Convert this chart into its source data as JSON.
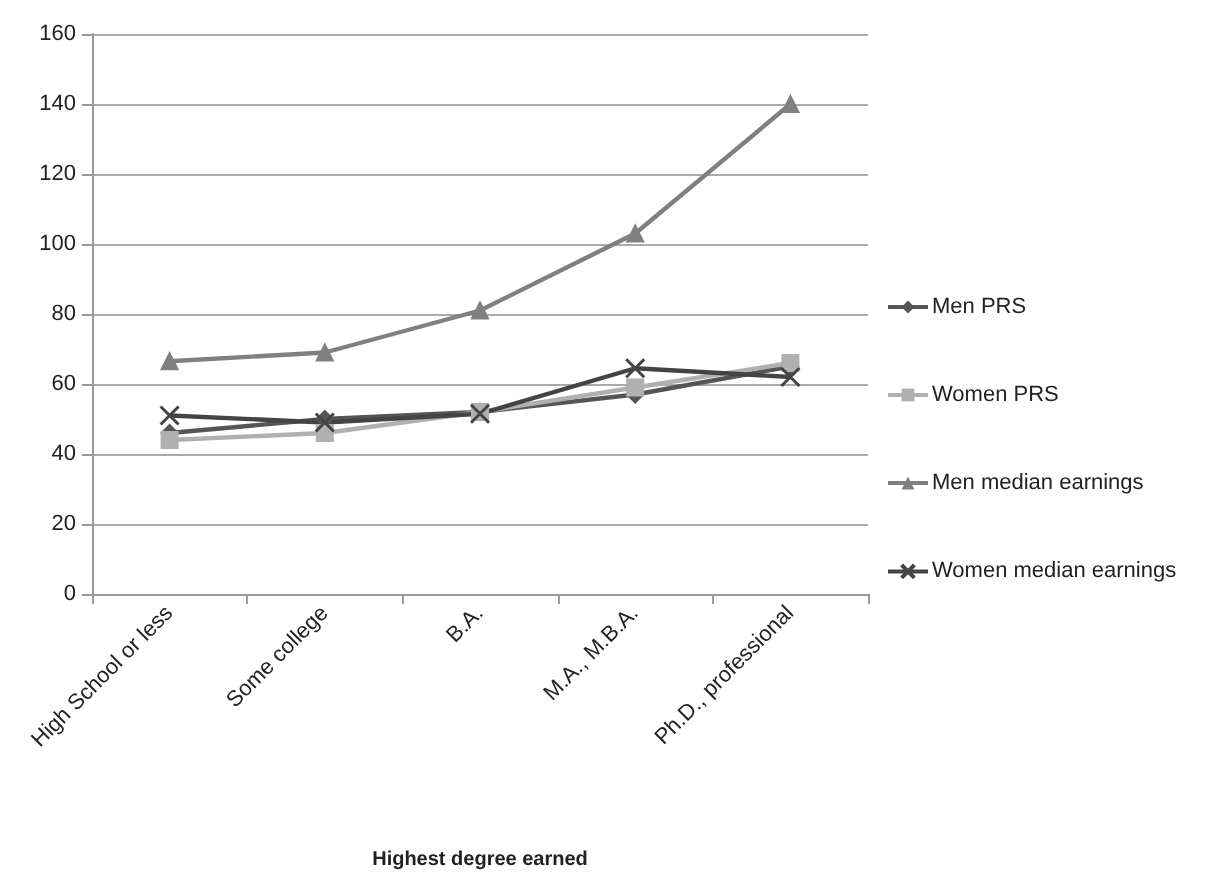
{
  "chart_data": {
    "type": "line",
    "xlabel": "Highest degree earned",
    "categories": [
      "High School or less",
      "Some college",
      "B.A.",
      "M.A., M.B.A.",
      "Ph.D., professional"
    ],
    "series": [
      {
        "name": "Men PRS",
        "color": "#555555",
        "marker": "diamond",
        "values": [
          46,
          50,
          52,
          57,
          65
        ]
      },
      {
        "name": "Women PRS",
        "color": "#b0b0b0",
        "marker": "square",
        "values": [
          44,
          46,
          52,
          59,
          66
        ]
      },
      {
        "name": "Men median earnings",
        "color": "#808080",
        "marker": "triangle",
        "values": [
          66.5,
          69,
          81,
          103,
          140
        ]
      },
      {
        "name": "Women median earnings",
        "color": "#444444",
        "marker": "cross",
        "values": [
          51,
          49,
          51.5,
          64.5,
          62
        ]
      }
    ],
    "ylim": [
      0,
      160
    ],
    "yticks": [
      0,
      20,
      40,
      60,
      80,
      100,
      120,
      140,
      160
    ],
    "grid": "y",
    "legend": "right"
  }
}
